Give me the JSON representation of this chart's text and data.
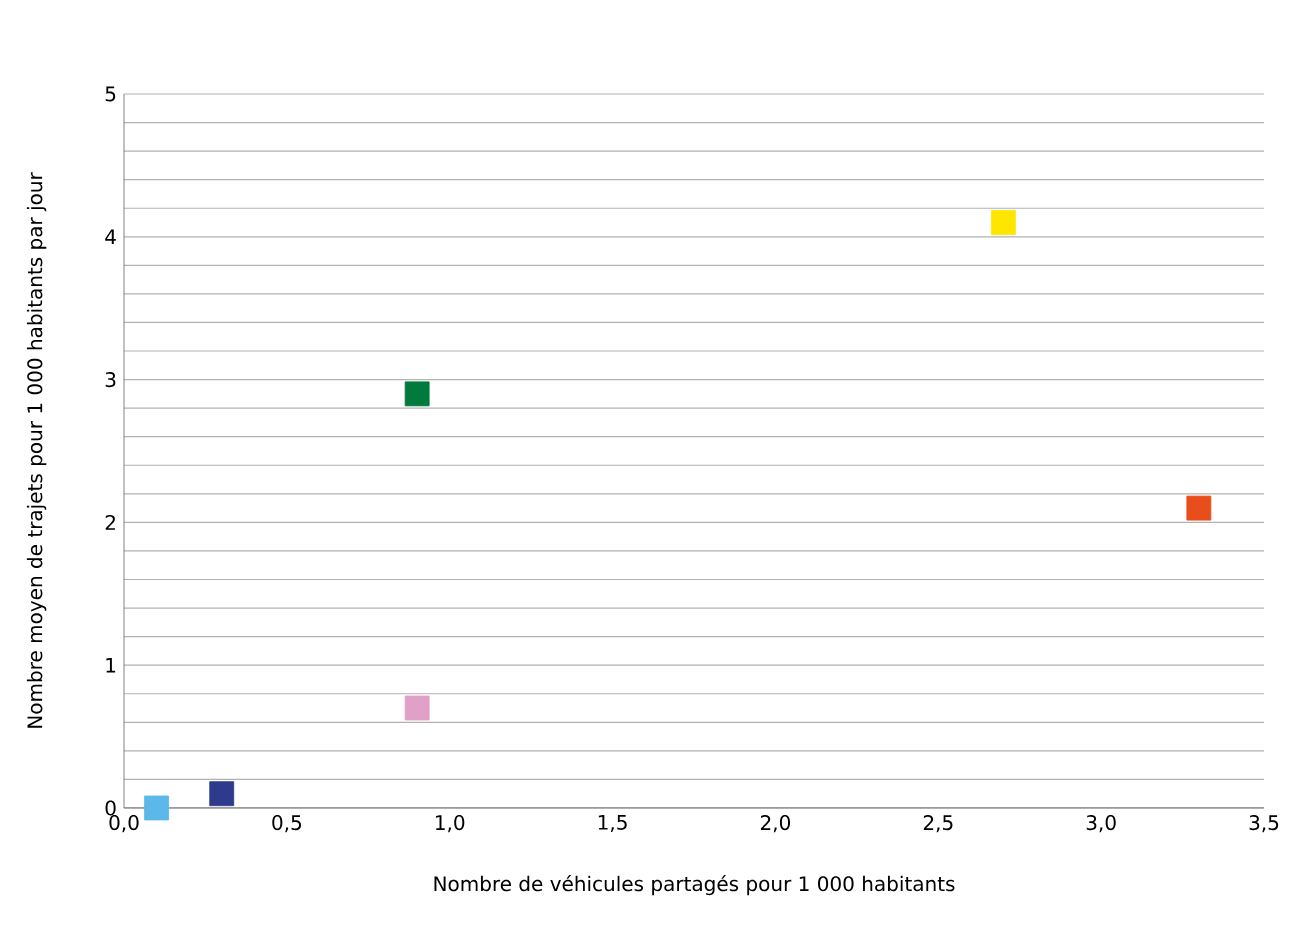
{
  "chart_data": {
    "type": "scatter",
    "xlabel": "Nombre de véhicules partagés pour 1 000 habitants",
    "ylabel": "Nombre moyen de trajets pour 1 000 habitants par jour",
    "x": [
      0.1,
      0.3,
      0.9,
      0.9,
      2.7,
      3.3
    ],
    "values": [
      0.0,
      0.1,
      0.7,
      2.9,
      4.1,
      2.1
    ],
    "colors": [
      "#5bb8e8",
      "#2e3a8c",
      "#e0a0c8",
      "#007a3d",
      "#ffe600",
      "#e84e1b"
    ],
    "marker": "square",
    "grid": "y",
    "xlim": [
      0,
      3.5
    ],
    "ylim": [
      0,
      5
    ],
    "xticks": [
      {
        "value": 0,
        "label": "0,0"
      },
      {
        "value": 0.5,
        "label": "0,5"
      },
      {
        "value": 1,
        "label": "1,0"
      },
      {
        "value": 1.5,
        "label": "1,5"
      },
      {
        "value": 2,
        "label": "2,0"
      },
      {
        "value": 2.5,
        "label": "2,5"
      },
      {
        "value": 3,
        "label": "3,0"
      },
      {
        "value": 3.5,
        "label": "3,5"
      }
    ],
    "yticks": [
      0,
      {
        "value": 0.2,
        "label": null
      },
      {
        "value": 0.4,
        "label": null
      },
      {
        "value": 0.6,
        "label": null
      },
      {
        "value": 0.8,
        "label": null
      },
      1,
      {
        "value": 1.2,
        "label": null
      },
      {
        "value": 1.4,
        "label": null
      },
      {
        "value": 1.6,
        "label": null
      },
      {
        "value": 1.8,
        "label": null
      },
      2,
      {
        "value": 2.2,
        "label": null
      },
      {
        "value": 2.4,
        "label": null
      },
      {
        "value": 2.6,
        "label": null
      },
      {
        "value": 2.8,
        "label": null
      },
      3,
      {
        "value": 3.2,
        "label": null
      },
      {
        "value": 3.4,
        "label": null
      },
      {
        "value": 3.6,
        "label": null
      },
      {
        "value": 3.8,
        "label": null
      },
      4,
      {
        "value": 4.2,
        "label": null
      },
      {
        "value": 4.4,
        "label": null
      },
      {
        "value": 4.6,
        "label": null
      },
      {
        "value": 4.8,
        "label": null
      },
      5
    ]
  }
}
